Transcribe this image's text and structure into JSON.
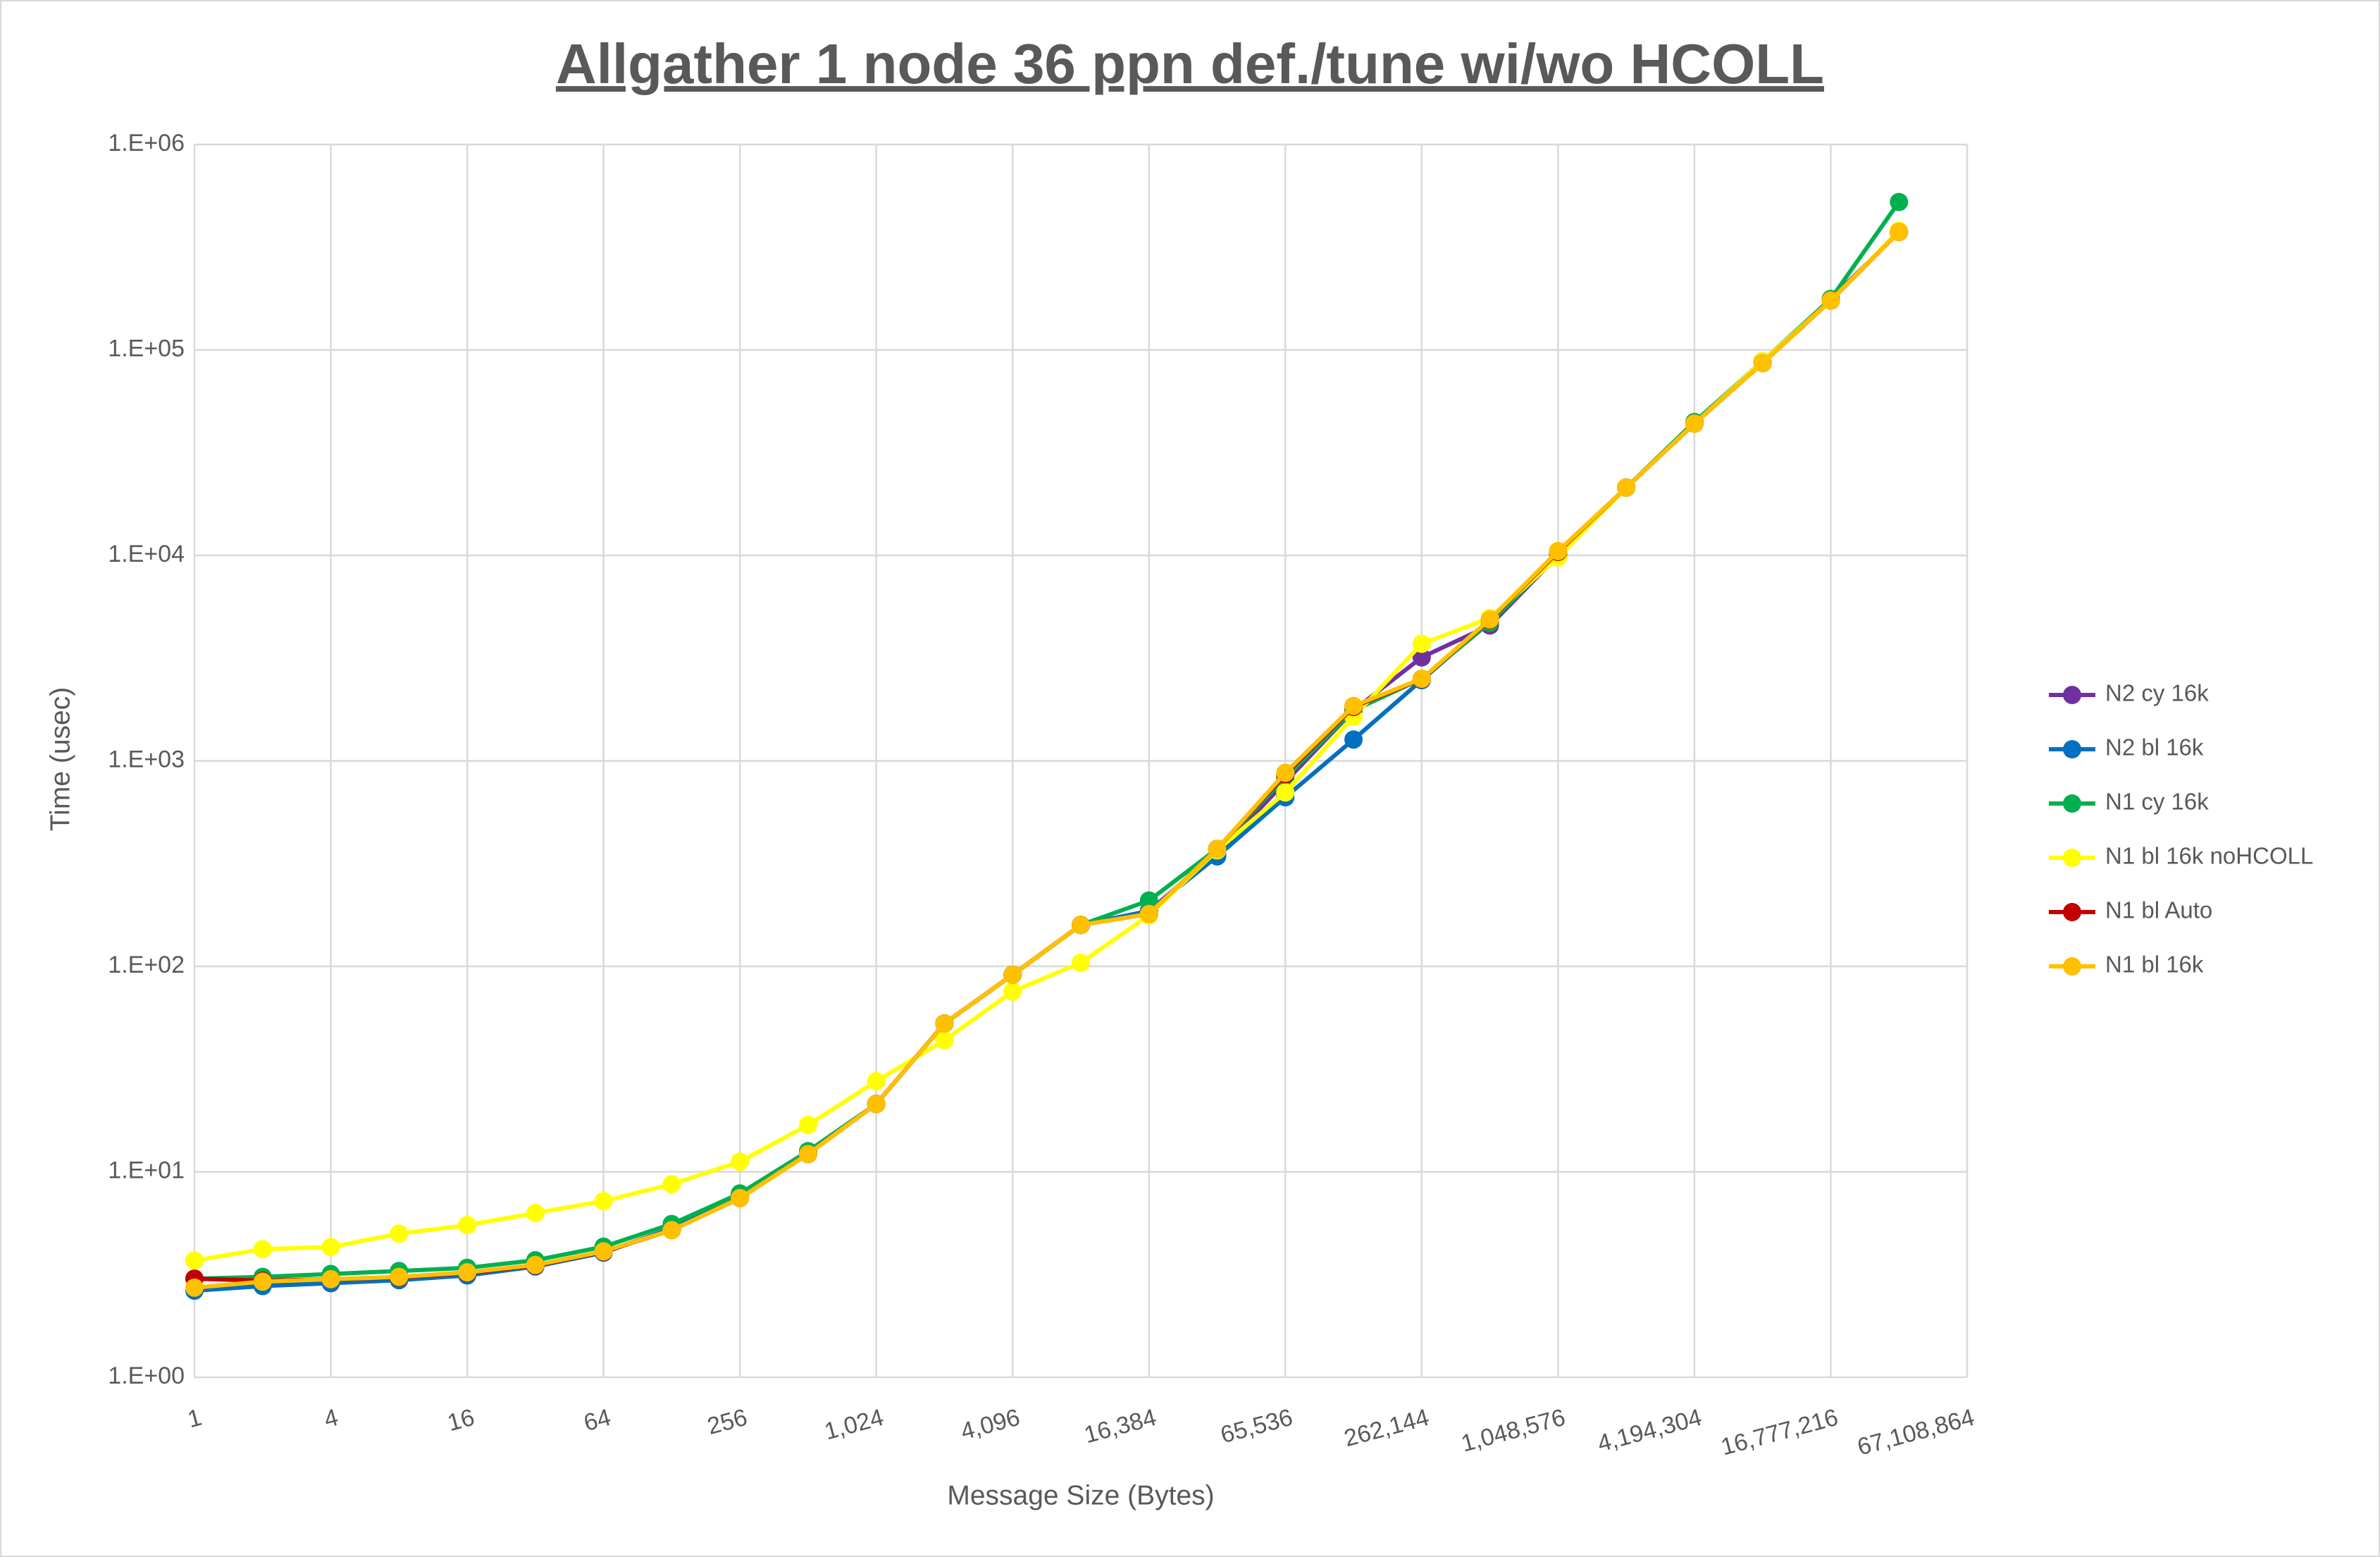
{
  "chart_data": {
    "type": "line",
    "title": "Allgather 1 node 36 ppn def./tune wi/wo HCOLL",
    "x_label": "Message Size (Bytes)",
    "y_label": "Time (usec)",
    "x": [
      1,
      2,
      4,
      8,
      16,
      32,
      64,
      128,
      256,
      512,
      1024,
      2048,
      4096,
      8192,
      16384,
      32768,
      65536,
      131072,
      262144,
      524288,
      1048576,
      2097152,
      4194304,
      8388608,
      16777216,
      33554432
    ],
    "xlim": [
      1,
      67108864
    ],
    "ylim": [
      1,
      1000000
    ],
    "xscale": "log",
    "yscale": "log",
    "grid": true,
    "legend": "right",
    "xticks": [
      1,
      4,
      16,
      64,
      256,
      {
        "value": 1024,
        "label": "1,024"
      },
      {
        "value": 4096,
        "label": "4,096"
      },
      {
        "value": 16384,
        "label": "16,384"
      },
      {
        "value": 65536,
        "label": "65,536"
      },
      {
        "value": 262144,
        "label": "262,144"
      },
      {
        "value": 1048576,
        "label": "1,048,576"
      },
      {
        "value": 4194304,
        "label": "4,194,304"
      },
      {
        "value": 16777216,
        "label": "16,777,216"
      },
      {
        "value": 67108864,
        "label": "67,108,864"
      }
    ],
    "yticks": [
      {
        "value": 1,
        "label": "1.E+00"
      },
      {
        "value": 10,
        "label": "1.E+01"
      },
      {
        "value": 100,
        "label": "1.E+02"
      },
      {
        "value": 1000,
        "label": "1.E+03"
      },
      {
        "value": 10000,
        "label": "1.E+04"
      },
      {
        "value": 100000,
        "label": "1.E+05"
      },
      {
        "value": 1000000,
        "label": "1.E+06"
      }
    ],
    "series": [
      {
        "name": "N2 cy 16k",
        "color": "#7030a0",
        "values": [
          2.68,
          2.84,
          2.92,
          3.0,
          3.15,
          3.48,
          4.06,
          5.3,
          7.6,
          12.3,
          21.4,
          52.7,
          91,
          159,
          186,
          355,
          790,
          1760,
          3190,
          4560,
          9990,
          21400,
          43800,
          88100,
          177000,
          375000
        ]
      },
      {
        "name": "N2 bl 16k",
        "color": "#0070c0",
        "values": [
          2.64,
          2.78,
          2.87,
          2.97,
          3.13,
          3.46,
          4.04,
          5.3,
          7.6,
          12.4,
          21.4,
          52.7,
          91,
          159,
          186,
          343,
          665,
          1270,
          2470,
          4800,
          9990,
          21400,
          43800,
          88100,
          174000,
          375000
        ]
      },
      {
        "name": "N1 cy 16k",
        "color": "#00b050",
        "values": [
          3.02,
          3.08,
          3.18,
          3.29,
          3.41,
          3.71,
          4.32,
          5.57,
          7.84,
          12.6,
          21.4,
          52.7,
          91,
          159,
          209,
          373,
          830,
          1760,
          2510,
          4710,
          9990,
          21400,
          44600,
          88100,
          177000,
          525000
        ]
      },
      {
        "name": "N1 bl 16k noHCOLL",
        "color": "#ffff00",
        "values": [
          3.7,
          4.2,
          4.3,
          5.0,
          5.5,
          6.3,
          7.2,
          8.7,
          11.2,
          16.9,
          27.6,
          43.7,
          75.4,
          104,
          177,
          367,
          702,
          1640,
          3715,
          4960,
          9790,
          21400,
          43800,
          88100,
          174000,
          380000
        ]
      },
      {
        "name": "N1 bl Auto",
        "color": "#c00000",
        "values": [
          3.02,
          2.95,
          3.0,
          3.06,
          3.22,
          3.5,
          4.08,
          5.2,
          7.45,
          12.2,
          21.4,
          52.7,
          91,
          159,
          180,
          373,
          860,
          1830,
          2500,
          4850,
          10400,
          21400,
          43800,
          86200,
          174000,
          375000
        ]
      },
      {
        "name": "N1 bl 16k",
        "color": "#ffc000",
        "values": [
          2.73,
          2.92,
          3.0,
          3.08,
          3.24,
          3.52,
          4.1,
          5.2,
          7.45,
          12.2,
          21.4,
          52.7,
          91,
          159,
          180,
          373,
          875,
          1850,
          2510,
          4880,
          10500,
          21400,
          43800,
          86200,
          174000,
          375000
        ]
      }
    ]
  }
}
